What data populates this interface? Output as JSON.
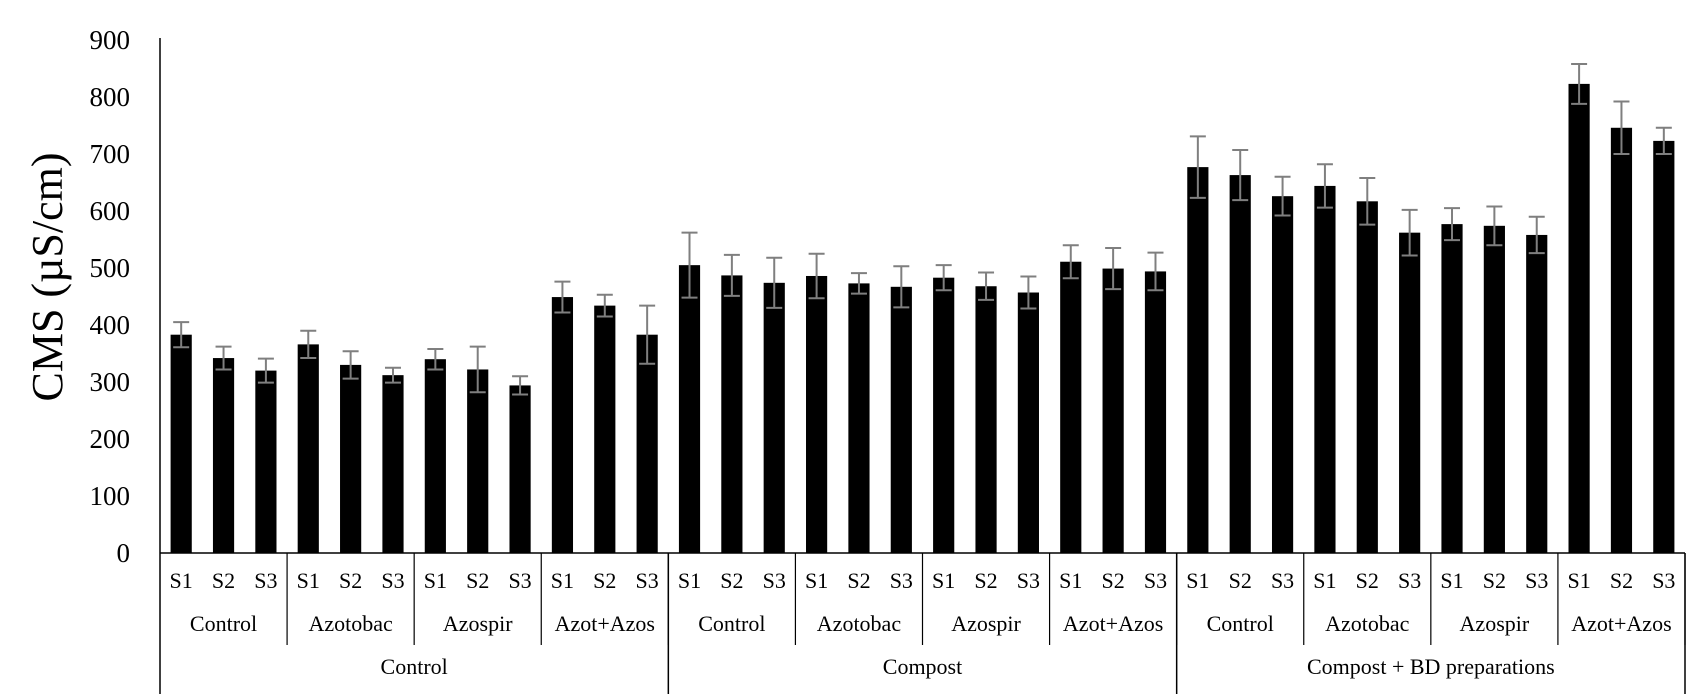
{
  "chart_data": {
    "type": "bar",
    "ylabel": "CMS (µS/cm)",
    "xlabel": "",
    "ylim": [
      0,
      900
    ],
    "yticks": [
      0,
      100,
      200,
      300,
      400,
      500,
      600,
      700,
      800,
      900
    ],
    "grid": false,
    "legend": "none",
    "bar_color": "#000000",
    "error_bar_color": "#7f7f7f",
    "groups": [
      {
        "label": "Control",
        "subgroups": [
          {
            "label": "Control",
            "bars": [
              {
                "label": "S1",
                "value": 383,
                "error": 22
              },
              {
                "label": "S2",
                "value": 342,
                "error": 20
              },
              {
                "label": "S3",
                "value": 320,
                "error": 21
              }
            ]
          },
          {
            "label": "Azotobac",
            "bars": [
              {
                "label": "S1",
                "value": 366,
                "error": 24
              },
              {
                "label": "S2",
                "value": 330,
                "error": 24
              },
              {
                "label": "S3",
                "value": 312,
                "error": 13
              }
            ]
          },
          {
            "label": "Azospir",
            "bars": [
              {
                "label": "S1",
                "value": 340,
                "error": 18
              },
              {
                "label": "S2",
                "value": 322,
                "error": 40
              },
              {
                "label": "S3",
                "value": 294,
                "error": 16
              }
            ]
          },
          {
            "label": "Azot+Azos",
            "bars": [
              {
                "label": "S1",
                "value": 449,
                "error": 27
              },
              {
                "label": "S2",
                "value": 434,
                "error": 19
              },
              {
                "label": "S3",
                "value": 383,
                "error": 51
              }
            ]
          }
        ]
      },
      {
        "label": "Compost",
        "subgroups": [
          {
            "label": "Control",
            "bars": [
              {
                "label": "S1",
                "value": 505,
                "error": 57
              },
              {
                "label": "S2",
                "value": 487,
                "error": 36
              },
              {
                "label": "S3",
                "value": 474,
                "error": 44
              }
            ]
          },
          {
            "label": "Azotobac",
            "bars": [
              {
                "label": "S1",
                "value": 486,
                "error": 39
              },
              {
                "label": "S2",
                "value": 473,
                "error": 18
              },
              {
                "label": "S3",
                "value": 467,
                "error": 36
              }
            ]
          },
          {
            "label": "Azospir",
            "bars": [
              {
                "label": "S1",
                "value": 483,
                "error": 22
              },
              {
                "label": "S2",
                "value": 468,
                "error": 24
              },
              {
                "label": "S3",
                "value": 457,
                "error": 28
              }
            ]
          },
          {
            "label": "Azot+Azos",
            "bars": [
              {
                "label": "S1",
                "value": 511,
                "error": 29
              },
              {
                "label": "S2",
                "value": 499,
                "error": 36
              },
              {
                "label": "S3",
                "value": 494,
                "error": 33
              }
            ]
          }
        ]
      },
      {
        "label": "Compost + BD preparations",
        "subgroups": [
          {
            "label": "Control",
            "bars": [
              {
                "label": "S1",
                "value": 677,
                "error": 54
              },
              {
                "label": "S2",
                "value": 663,
                "error": 44
              },
              {
                "label": "S3",
                "value": 626,
                "error": 34
              }
            ]
          },
          {
            "label": "Azotobac",
            "bars": [
              {
                "label": "S1",
                "value": 644,
                "error": 38
              },
              {
                "label": "S2",
                "value": 617,
                "error": 41
              },
              {
                "label": "S3",
                "value": 562,
                "error": 40
              }
            ]
          },
          {
            "label": "Azospir",
            "bars": [
              {
                "label": "S1",
                "value": 577,
                "error": 28
              },
              {
                "label": "S2",
                "value": 574,
                "error": 34
              },
              {
                "label": "S3",
                "value": 558,
                "error": 32
              }
            ]
          },
          {
            "label": "Azot+Azos",
            "bars": [
              {
                "label": "S1",
                "value": 823,
                "error": 35
              },
              {
                "label": "S2",
                "value": 746,
                "error": 46
              },
              {
                "label": "S3",
                "value": 723,
                "error": 23
              }
            ]
          }
        ]
      }
    ]
  }
}
